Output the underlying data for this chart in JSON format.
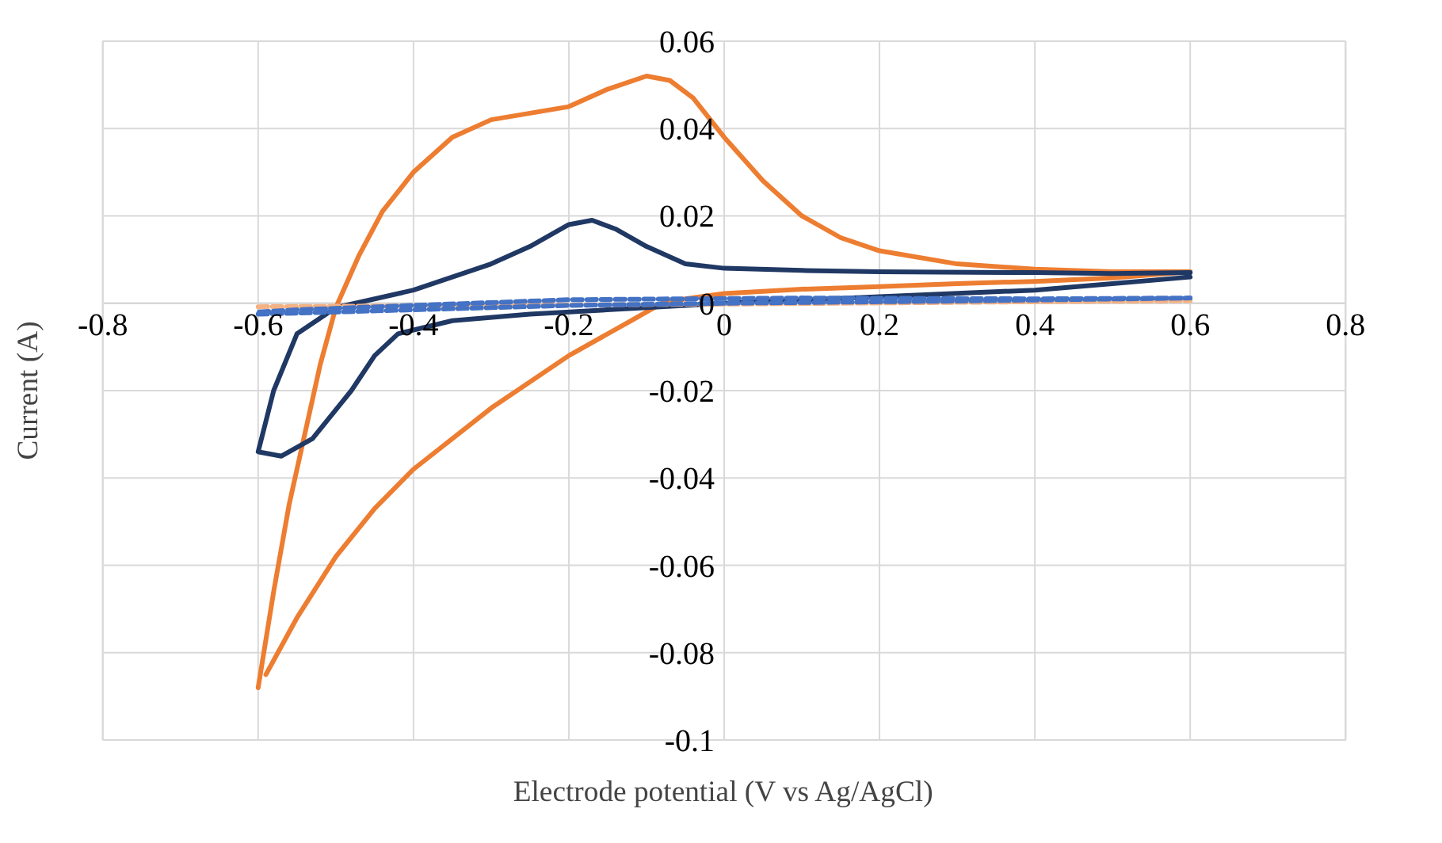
{
  "chart_data": {
    "type": "line",
    "xlabel": "Electrode potential (V vs Ag/AgCl)",
    "ylabel": "Current (A)",
    "xlim": [
      -0.8,
      0.8
    ],
    "xticks": [
      -0.8,
      -0.6,
      -0.4,
      -0.2,
      0,
      0.2,
      0.4,
      0.6,
      0.8
    ],
    "ylim": [
      -0.1,
      0.06
    ],
    "yticks": [
      -0.1,
      -0.08,
      -0.06,
      -0.04,
      -0.02,
      0,
      0.02,
      0.04,
      0.06
    ],
    "grid": true,
    "marker": "none",
    "series": [
      {
        "color": "#ed7d31",
        "line_style": "solid",
        "x": [
          -0.6,
          -0.58,
          -0.56,
          -0.54,
          -0.52,
          -0.5,
          -0.47,
          -0.44,
          -0.4,
          -0.35,
          -0.3,
          -0.25,
          -0.2,
          -0.15,
          -0.1,
          -0.07,
          -0.04,
          0,
          0.05,
          0.1,
          0.15,
          0.2,
          0.3,
          0.4,
          0.5,
          0.6,
          0.5,
          0.4,
          0.3,
          0.2,
          0.1,
          0.0,
          -0.05,
          -0.08,
          -0.12,
          -0.2,
          -0.3,
          -0.4,
          -0.45,
          -0.5,
          -0.55,
          -0.59
        ],
        "values": [
          -0.088,
          -0.066,
          -0.046,
          -0.03,
          -0.014,
          -0.001,
          0.011,
          0.021,
          0.03,
          0.038,
          0.042,
          0.0435,
          0.045,
          0.049,
          0.052,
          0.051,
          0.047,
          0.038,
          0.028,
          0.02,
          0.015,
          0.012,
          0.009,
          0.0078,
          0.0072,
          0.0072,
          0.0058,
          0.005,
          0.0045,
          0.0038,
          0.0032,
          0.0022,
          0.001,
          0.0,
          -0.004,
          -0.012,
          -0.024,
          -0.038,
          -0.047,
          -0.058,
          -0.072,
          -0.085
        ]
      },
      {
        "color": "#203864",
        "line_style": "solid",
        "x": [
          0.6,
          0.5,
          0.4,
          0.2,
          0.1,
          0,
          -0.05,
          -0.1,
          -0.14,
          -0.17,
          -0.2,
          -0.25,
          -0.3,
          -0.35,
          -0.4,
          -0.45,
          -0.5,
          -0.55,
          -0.58,
          -0.6,
          -0.57,
          -0.53,
          -0.48,
          -0.45,
          -0.42,
          -0.35,
          -0.25,
          -0.1,
          0,
          0.2,
          0.4,
          0.5,
          0.6
        ],
        "values": [
          0.007,
          0.0068,
          0.007,
          0.0072,
          0.0075,
          0.008,
          0.009,
          0.013,
          0.017,
          0.019,
          0.018,
          0.013,
          0.009,
          0.006,
          0.003,
          0.001,
          -0.001,
          -0.007,
          -0.02,
          -0.034,
          -0.035,
          -0.031,
          -0.02,
          -0.012,
          -0.007,
          -0.004,
          -0.0025,
          -0.001,
          0.0,
          0.0015,
          0.003,
          0.0045,
          0.006
        ]
      },
      {
        "color": "#f4b183",
        "line_style": "dashed",
        "x": [
          -0.6,
          -0.3,
          0,
          0.3,
          0.6
        ],
        "values": [
          -0.0008,
          -0.0005,
          -0.0002,
          0.0002,
          0.0006
        ]
      },
      {
        "color": "#4472c4",
        "line_style": "dashed",
        "x": [
          -0.6,
          -0.4,
          -0.2,
          0,
          0.3,
          0.6,
          0.4,
          0.1,
          -0.2,
          -0.4,
          -0.55,
          -0.6
        ],
        "values": [
          -0.0025,
          -0.0015,
          -0.0005,
          0.0,
          0.0005,
          0.0012,
          0.001,
          0.0012,
          0.0008,
          -0.0005,
          -0.0015,
          -0.002
        ]
      }
    ]
  }
}
